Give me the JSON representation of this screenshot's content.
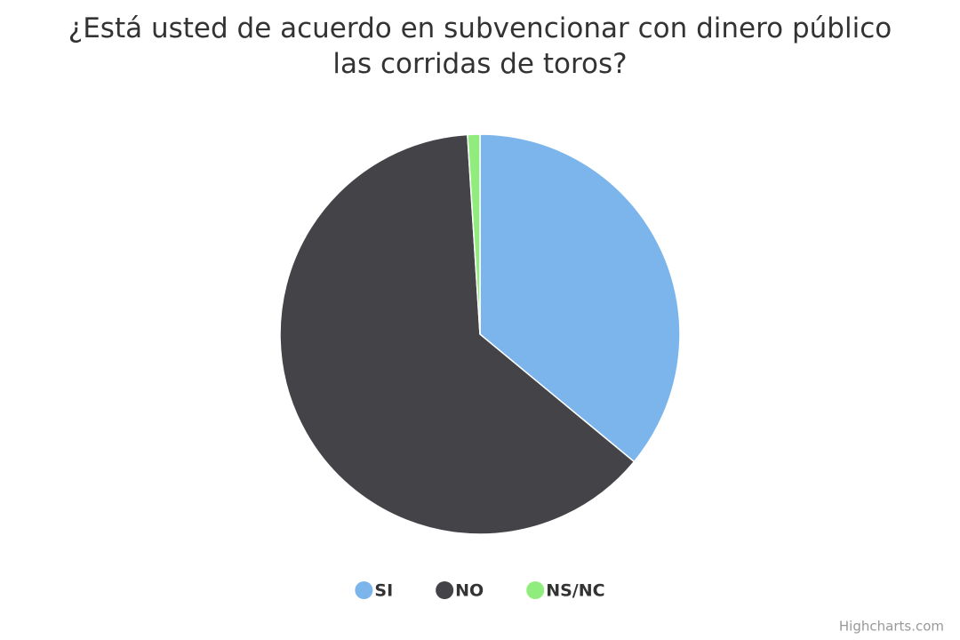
{
  "chart_data": {
    "type": "pie",
    "title": "¿Está usted de acuerdo en subvencionar con dinero público las corridas de toros?",
    "categories": [
      "SI",
      "NO",
      "NS/NC"
    ],
    "values": [
      36,
      63,
      1
    ],
    "colors": [
      "#7cb5ec",
      "#434348",
      "#90ed7d"
    ],
    "legend": "bottom",
    "credits": "Highcharts.com"
  }
}
